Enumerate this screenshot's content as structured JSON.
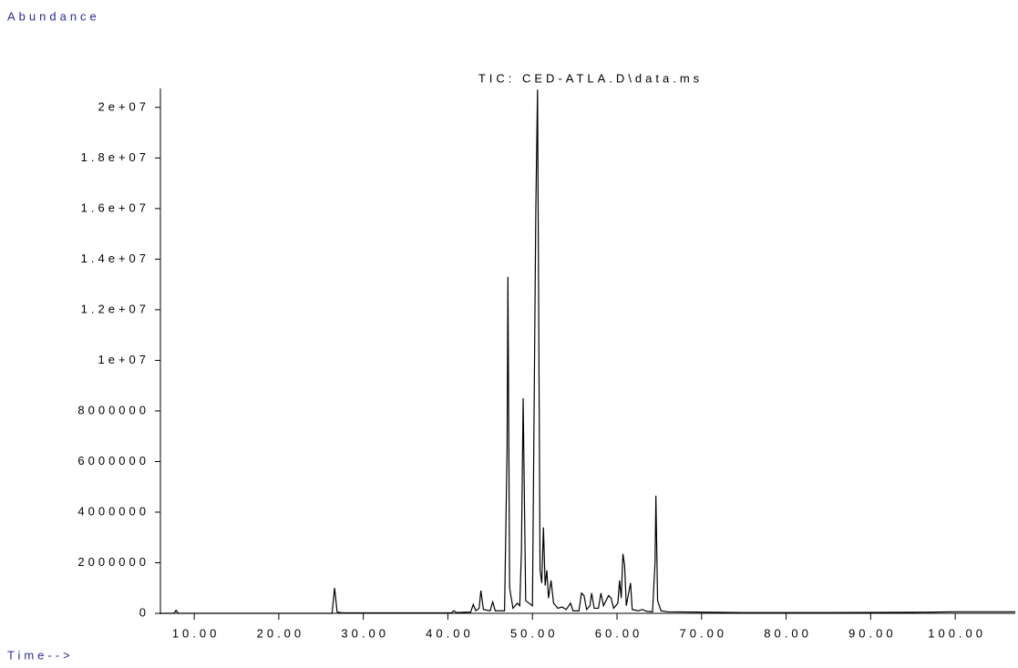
{
  "chart_data": {
    "type": "line",
    "title": "TIC: CED-ATLA.D\\data.ms",
    "y_label": "Abundance",
    "x_label": "Time-->",
    "xlim": [
      6.0,
      107.1
    ],
    "ylim": [
      0,
      20750000
    ],
    "xticks": [
      {
        "value": 10,
        "label": "10.00"
      },
      {
        "value": 20,
        "label": "20.00"
      },
      {
        "value": 30,
        "label": "30.00"
      },
      {
        "value": 40,
        "label": "40.00"
      },
      {
        "value": 50,
        "label": "50.00"
      },
      {
        "value": 60,
        "label": "60.00"
      },
      {
        "value": 70,
        "label": "70.00"
      },
      {
        "value": 80,
        "label": "80.00"
      },
      {
        "value": 90,
        "label": "90.00"
      },
      {
        "value": 100,
        "label": "100.00"
      }
    ],
    "yticks": [
      0,
      2000000,
      4000000,
      6000000,
      8000000,
      {
        "value": 10000000,
        "label": "1e+07"
      },
      {
        "value": 12000000,
        "label": "1.2e+07"
      },
      {
        "value": 14000000,
        "label": "1.4e+07"
      },
      {
        "value": 16000000,
        "label": "1.6e+07"
      },
      {
        "value": 18000000,
        "label": "1.8e+07"
      },
      {
        "value": 20000000,
        "label": "2e+07"
      }
    ],
    "color": "#000000",
    "x": [
      6.0,
      7.6,
      7.85,
      8.1,
      26.3,
      26.6,
      26.9,
      27.5,
      40.4,
      40.7,
      41.0,
      42.7,
      43.0,
      43.3,
      43.7,
      43.9,
      44.2,
      45.0,
      45.3,
      45.6,
      46.7,
      47.0,
      47.1,
      47.3,
      47.7,
      48.2,
      48.5,
      48.7,
      48.9,
      49.2,
      50.0,
      50.4,
      50.6,
      50.9,
      51.1,
      51.3,
      51.5,
      51.7,
      51.9,
      52.2,
      52.5,
      53.0,
      53.5,
      54.0,
      54.5,
      54.8,
      55.5,
      55.8,
      56.1,
      56.4,
      56.8,
      57.0,
      57.3,
      57.8,
      58.1,
      58.4,
      59.0,
      59.3,
      59.6,
      60.1,
      60.3,
      60.5,
      60.7,
      60.9,
      61.1,
      61.6,
      61.8,
      62.5,
      63.0,
      63.5,
      64.2,
      64.5,
      64.6,
      64.8,
      65.2,
      66.0,
      75.0,
      85.0,
      95.0,
      100.0,
      105.0,
      107.1
    ],
    "values": [
      0,
      0,
      120000,
      0,
      0,
      1000000,
      50000,
      20000,
      20000,
      100000,
      30000,
      50000,
      350000,
      100000,
      200000,
      900000,
      150000,
      100000,
      450000,
      100000,
      100000,
      6500000,
      13300000,
      1000000,
      200000,
      400000,
      300000,
      2500000,
      8500000,
      500000,
      300000,
      16000000,
      20700000,
      1700000,
      1200000,
      3400000,
      1100000,
      1700000,
      600000,
      1300000,
      400000,
      200000,
      250000,
      150000,
      400000,
      100000,
      100000,
      800000,
      700000,
      150000,
      300000,
      800000,
      200000,
      200000,
      800000,
      300000,
      700000,
      600000,
      200000,
      400000,
      1300000,
      600000,
      2350000,
      1900000,
      300000,
      1200000,
      150000,
      100000,
      150000,
      80000,
      60000,
      2000000,
      4650000,
      500000,
      100000,
      60000,
      30000,
      30000,
      40000,
      60000,
      60000,
      60000
    ]
  }
}
